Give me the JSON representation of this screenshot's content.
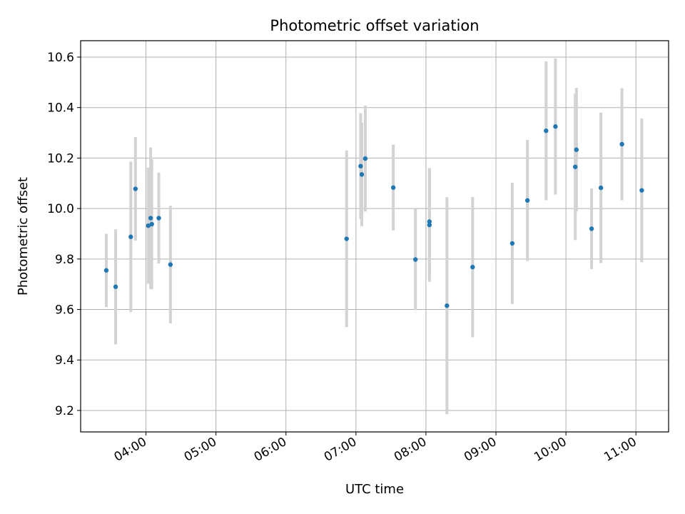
{
  "chart_data": {
    "type": "scatter",
    "title": "Photometric offset variation",
    "xlabel": "UTC time",
    "ylabel": "Photometric offset",
    "x_axis": "time (UTC, HH:MM)",
    "xlim": [
      "03:04",
      "11:28"
    ],
    "ylim": [
      9.115,
      10.665
    ],
    "x_ticks": [
      "04:00",
      "05:00",
      "06:00",
      "07:00",
      "08:00",
      "09:00",
      "10:00",
      "11:00"
    ],
    "y_ticks": [
      9.2,
      9.4,
      9.6,
      9.8,
      10.0,
      10.2,
      10.4,
      10.6
    ],
    "y_tick_labels": [
      "9.2",
      "9.4",
      "9.6",
      "9.8",
      "10.0",
      "10.2",
      "10.4",
      "10.6"
    ],
    "grid": true,
    "legend": "none",
    "colors": {
      "marker": "#1f77b4",
      "errorbar": "#d3d3d3",
      "grid": "#b0b0b0"
    },
    "points": [
      {
        "x": "03:26",
        "y": 9.755,
        "yerr": 0.145
      },
      {
        "x": "03:34",
        "y": 9.69,
        "yerr": 0.228
      },
      {
        "x": "03:47",
        "y": 9.888,
        "yerr": 0.298
      },
      {
        "x": "03:51",
        "y": 10.078,
        "yerr": 0.205
      },
      {
        "x": "04:02",
        "y": 9.932,
        "yerr": 0.23
      },
      {
        "x": "04:04",
        "y": 9.962,
        "yerr": 0.28
      },
      {
        "x": "04:05",
        "y": 9.938,
        "yerr": 0.258
      },
      {
        "x": "04:11",
        "y": 9.962,
        "yerr": 0.18
      },
      {
        "x": "04:21",
        "y": 9.778,
        "yerr": 0.233
      },
      {
        "x": "06:52",
        "y": 9.88,
        "yerr": 0.35
      },
      {
        "x": "07:04",
        "y": 10.168,
        "yerr": 0.21
      },
      {
        "x": "07:05",
        "y": 10.135,
        "yerr": 0.205
      },
      {
        "x": "07:08",
        "y": 10.198,
        "yerr": 0.21
      },
      {
        "x": "07:32",
        "y": 10.083,
        "yerr": 0.17
      },
      {
        "x": "07:51",
        "y": 9.798,
        "yerr": 0.2
      },
      {
        "x": "08:03",
        "y": 9.948,
        "yerr": 0.21
      },
      {
        "x": "08:03",
        "y": 9.935,
        "yerr": 0.225
      },
      {
        "x": "08:18",
        "y": 9.615,
        "yerr": 0.43
      },
      {
        "x": "08:40",
        "y": 9.768,
        "yerr": 0.278
      },
      {
        "x": "09:14",
        "y": 9.862,
        "yerr": 0.24
      },
      {
        "x": "09:27",
        "y": 10.032,
        "yerr": 0.24
      },
      {
        "x": "09:43",
        "y": 10.308,
        "yerr": 0.275
      },
      {
        "x": "09:51",
        "y": 10.325,
        "yerr": 0.27
      },
      {
        "x": "10:08",
        "y": 10.165,
        "yerr": 0.29
      },
      {
        "x": "10:09",
        "y": 10.233,
        "yerr": 0.245
      },
      {
        "x": "10:22",
        "y": 9.92,
        "yerr": 0.16
      },
      {
        "x": "10:30",
        "y": 10.082,
        "yerr": 0.298
      },
      {
        "x": "10:48",
        "y": 10.255,
        "yerr": 0.222
      },
      {
        "x": "11:05",
        "y": 10.072,
        "yerr": 0.285
      }
    ]
  }
}
